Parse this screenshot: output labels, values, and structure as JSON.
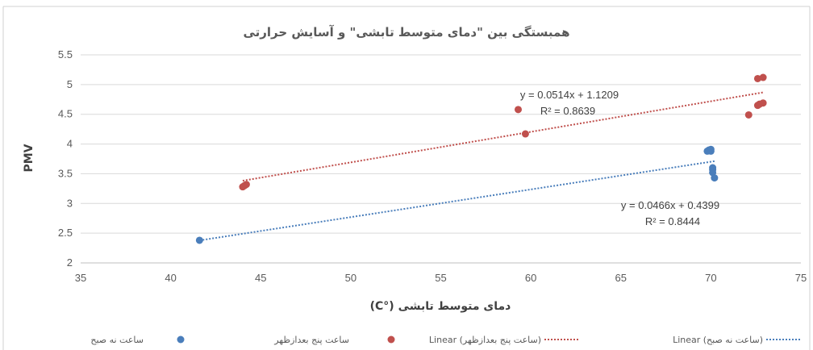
{
  "chart_data": {
    "type": "scatter",
    "title": "همبستگی بین \"دمای متوسط تابشی\" و آسایش حرارتی",
    "xlabel": "(C°) دمای متوسط تابشی",
    "ylabel": "PMV",
    "xlim": [
      35,
      75
    ],
    "ylim": [
      2,
      5.5
    ],
    "x_ticks": [
      "35",
      "40",
      "45",
      "50",
      "55",
      "60",
      "65",
      "70",
      "75"
    ],
    "y_ticks": [
      "2",
      "2.5",
      "3",
      "3.5",
      "4",
      "4.5",
      "5",
      "5.5"
    ],
    "grid": "horizontal",
    "legend_position": "bottom",
    "series": [
      {
        "name": "ساعت نه صبح",
        "color": "#4a7ebb",
        "points": [
          [
            41.6,
            2.38
          ],
          [
            69.8,
            3.88
          ],
          [
            69.9,
            3.9
          ],
          [
            70.0,
            3.91
          ],
          [
            70.0,
            3.88
          ],
          [
            70.1,
            3.6
          ],
          [
            70.1,
            3.57
          ],
          [
            70.1,
            3.52
          ],
          [
            70.2,
            3.43
          ]
        ],
        "trendline": {
          "legend_label": "Linear (ساعت نه صبح)",
          "slope": 0.0466,
          "intercept": 0.4399,
          "x_range": [
            41.6,
            70.2
          ],
          "equation": "y = 0.0466x + 0.4399",
          "r2": "R² = 0.8444"
        }
      },
      {
        "name": "ساعت پنج بعدازظهر",
        "color": "#c0504d",
        "points": [
          [
            44.0,
            3.28
          ],
          [
            44.1,
            3.3
          ],
          [
            44.2,
            3.32
          ],
          [
            59.3,
            4.58
          ],
          [
            59.7,
            4.17
          ],
          [
            72.1,
            4.49
          ],
          [
            72.6,
            4.65
          ],
          [
            72.7,
            4.67
          ],
          [
            72.9,
            4.69
          ],
          [
            72.6,
            5.1
          ],
          [
            72.9,
            5.12
          ]
        ],
        "trendline": {
          "legend_label": "Linear (ساعت پنج بعدازظهر)",
          "slope": 0.0514,
          "intercept": 1.1209,
          "x_range": [
            44.0,
            72.9
          ],
          "equation": "y = 0.0514x + 1.1209",
          "r2": "R² = 0.8639"
        }
      }
    ]
  }
}
